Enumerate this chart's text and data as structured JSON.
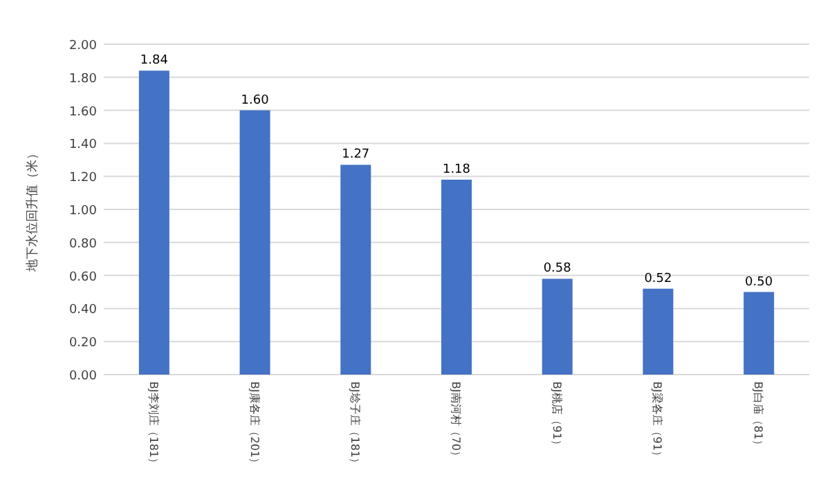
{
  "chart_data": {
    "type": "bar",
    "ylabel": "地下水位回升值（米）",
    "categories": [
      "BJ李刘庄（181）",
      "BJ康各庄（201）",
      "BJ埝子庄（181）",
      "BJ南河村（70）",
      "BJ桃店（91）",
      "BJ梁各庄（91）",
      "BJ白庙（81）"
    ],
    "values": [
      1.84,
      1.6,
      1.27,
      1.18,
      0.58,
      0.52,
      0.5
    ],
    "value_labels": [
      "1.84",
      "1.60",
      "1.27",
      "1.18",
      "0.58",
      "0.52",
      "0.50"
    ],
    "color": "#4472c4",
    "ylim": [
      0,
      2
    ],
    "yticks": [
      {
        "value": 0,
        "label": "0.00"
      },
      {
        "value": 0.2,
        "label": "0.20"
      },
      {
        "value": 0.4,
        "label": "0.40"
      },
      {
        "value": 0.6,
        "label": "0.60"
      },
      {
        "value": 0.8,
        "label": "0.80"
      },
      {
        "value": 1,
        "label": "1.00"
      },
      {
        "value": 1.2,
        "label": "1.20"
      },
      {
        "value": 1.4,
        "label": "1.40"
      },
      {
        "value": 1.6,
        "label": "1.60"
      },
      {
        "value": 1.8,
        "label": "1.80"
      },
      {
        "value": 2,
        "label": "2.00"
      }
    ],
    "grid": "y"
  }
}
